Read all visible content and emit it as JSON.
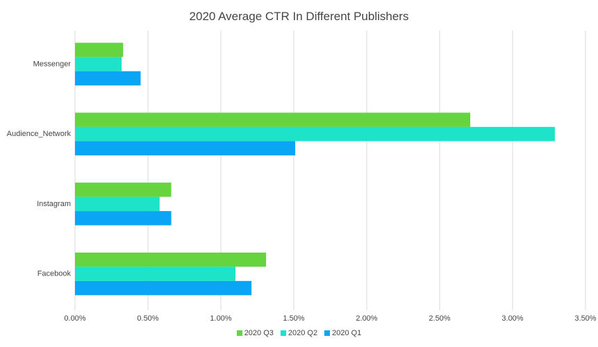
{
  "chart_data": {
    "type": "bar",
    "orientation": "horizontal",
    "title": "2020 Average CTR In Different Publishers",
    "categories": [
      "Messenger",
      "Audience_Network",
      "Instagram",
      "Facebook"
    ],
    "series": [
      {
        "name": "2020 Q3",
        "color": "#66d43f",
        "values": [
          0.33,
          2.71,
          0.66,
          1.31
        ]
      },
      {
        "name": "2020 Q2",
        "color": "#1de3c9",
        "values": [
          0.32,
          3.29,
          0.58,
          1.1
        ]
      },
      {
        "name": "2020 Q1",
        "color": "#0aa5f5",
        "values": [
          0.45,
          1.51,
          0.66,
          1.21
        ]
      }
    ],
    "xlim": [
      0,
      3.5
    ],
    "xticks": [
      "0.00%",
      "0.50%",
      "1.00%",
      "1.50%",
      "2.00%",
      "2.50%",
      "3.00%",
      "3.50%"
    ],
    "grid": "vertical",
    "legend_position": "bottom"
  }
}
